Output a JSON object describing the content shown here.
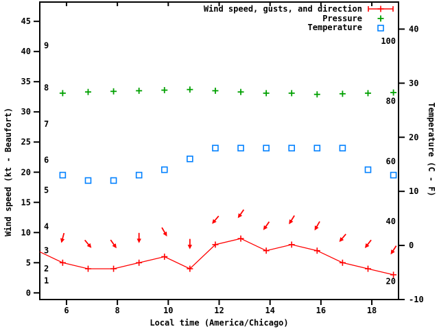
{
  "colors": {
    "wind": "#ff0000",
    "pressure": "#00a000",
    "temperature": "#0080ff",
    "axis": "#000000",
    "background": "#ffffff"
  },
  "legend": {
    "items": [
      {
        "label": "Wind speed, gusts, and direction",
        "key": "errorbar",
        "color": "#ff0000"
      },
      {
        "label": "Pressure",
        "key": "plus",
        "color": "#00a000"
      },
      {
        "label": "Temperature",
        "key": "square",
        "color": "#0080ff"
      }
    ]
  },
  "axes": {
    "x": {
      "title": "Local time (America/Chicago)",
      "range": [
        4.95,
        19.05
      ],
      "tick_values": [
        6,
        8,
        10,
        12,
        14,
        16,
        18
      ]
    },
    "y_left": {
      "title": "Wind speed (kt - Beaufort)",
      "range_kt": [
        -1.1,
        48.2
      ],
      "kt_ticks": [
        0,
        5,
        10,
        15,
        20,
        25,
        30,
        35,
        40,
        45
      ],
      "beaufort_labels": [
        {
          "label": "1",
          "kt": 2
        },
        {
          "label": "2",
          "kt": 4
        },
        {
          "label": "3",
          "kt": 7
        },
        {
          "label": "4",
          "kt": 11
        },
        {
          "label": "5",
          "kt": 17
        },
        {
          "label": "6",
          "kt": 22
        },
        {
          "label": "7",
          "kt": 28
        },
        {
          "label": "8",
          "kt": 34
        },
        {
          "label": "9",
          "kt": 41
        }
      ]
    },
    "y_right": {
      "title": "Temperature (C - F)",
      "range_c": [
        -10,
        45
      ],
      "c_ticks": [
        -10,
        0,
        10,
        20,
        30,
        40
      ],
      "f_labels": [
        {
          "label": "20",
          "f": 20
        },
        {
          "label": "40",
          "f": 40
        },
        {
          "label": "60",
          "f": 60
        },
        {
          "label": "80",
          "f": 80
        },
        {
          "label": "100",
          "f": 100
        }
      ]
    }
  },
  "chart_data": {
    "type": "line",
    "x_hours": [
      5.85,
      6.85,
      7.85,
      8.85,
      9.85,
      10.85,
      11.85,
      12.85,
      13.85,
      14.85,
      15.85,
      16.85,
      17.85,
      18.85
    ],
    "series": [
      {
        "name": "Wind speed, gusts, and direction",
        "axis": "left_kt",
        "unit": "kt",
        "color": "#ff0000",
        "marker": "plus",
        "line": true,
        "lead_in": {
          "hour": 4.85,
          "value": 7
        },
        "values": [
          5,
          4,
          4,
          5,
          6,
          4,
          8,
          9,
          7,
          8,
          7,
          5,
          4,
          3
        ],
        "direction_deg": [
          195,
          140,
          145,
          180,
          150,
          180,
          220,
          215,
          215,
          212,
          210,
          220,
          218,
          213
        ]
      },
      {
        "name": "Pressure",
        "axis": "left_kt",
        "unit": "kt-axis-units",
        "color": "#00a000",
        "marker": "plus",
        "line": false,
        "values": [
          33.1,
          33.3,
          33.4,
          33.5,
          33.6,
          33.7,
          33.5,
          33.3,
          33.1,
          33.1,
          32.9,
          33.0,
          33.1,
          33.2
        ]
      },
      {
        "name": "Temperature",
        "axis": "right_c",
        "unit": "C",
        "color": "#0080ff",
        "marker": "square",
        "line": false,
        "values": [
          13,
          12,
          12,
          13,
          14,
          16,
          18,
          18,
          18,
          18,
          18,
          18,
          14,
          13
        ]
      }
    ]
  }
}
